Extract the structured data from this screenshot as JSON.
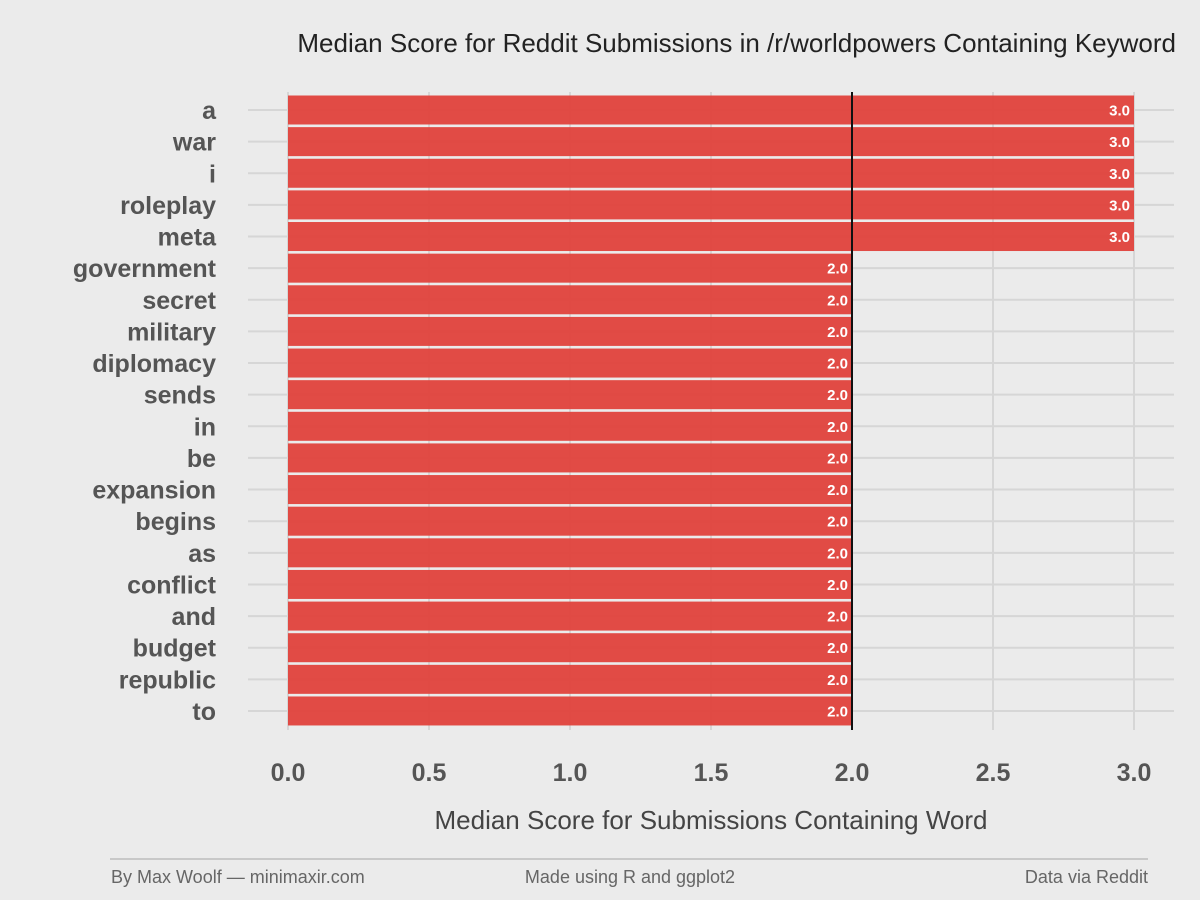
{
  "chart_data": {
    "type": "bar",
    "orientation": "horizontal",
    "title": "Median Score for Reddit Submissions in /r/worldpowers Containing Keyword",
    "xlabel": "Median Score for Submissions Containing Word",
    "ylabel": "",
    "xlim": [
      0,
      3
    ],
    "x_ticks": [
      "0.0",
      "0.5",
      "1.0",
      "1.5",
      "2.0",
      "2.5",
      "3.0"
    ],
    "reference_line": 2.0,
    "grid": true,
    "bar_color": "#e0453f",
    "categories": [
      "a",
      "war",
      "i",
      "roleplay",
      "meta",
      "government",
      "secret",
      "military",
      "diplomacy",
      "sends",
      "in",
      "be",
      "expansion",
      "begins",
      "as",
      "conflict",
      "and",
      "budget",
      "republic",
      "to"
    ],
    "values": [
      3.0,
      3.0,
      3.0,
      3.0,
      3.0,
      2.0,
      2.0,
      2.0,
      2.0,
      2.0,
      2.0,
      2.0,
      2.0,
      2.0,
      2.0,
      2.0,
      2.0,
      2.0,
      2.0,
      2.0
    ],
    "value_labels": [
      "3.0",
      "3.0",
      "3.0",
      "3.0",
      "3.0",
      "2.0",
      "2.0",
      "2.0",
      "2.0",
      "2.0",
      "2.0",
      "2.0",
      "2.0",
      "2.0",
      "2.0",
      "2.0",
      "2.0",
      "2.0",
      "2.0",
      "2.0"
    ]
  },
  "footer": {
    "left": "By Max Woolf — minimaxir.com",
    "center": "Made using R and ggplot2",
    "right": "Data via Reddit"
  },
  "colors": {
    "background": "#ebebeb",
    "grid": "#d6d6d6",
    "reference_line": "#111111"
  }
}
